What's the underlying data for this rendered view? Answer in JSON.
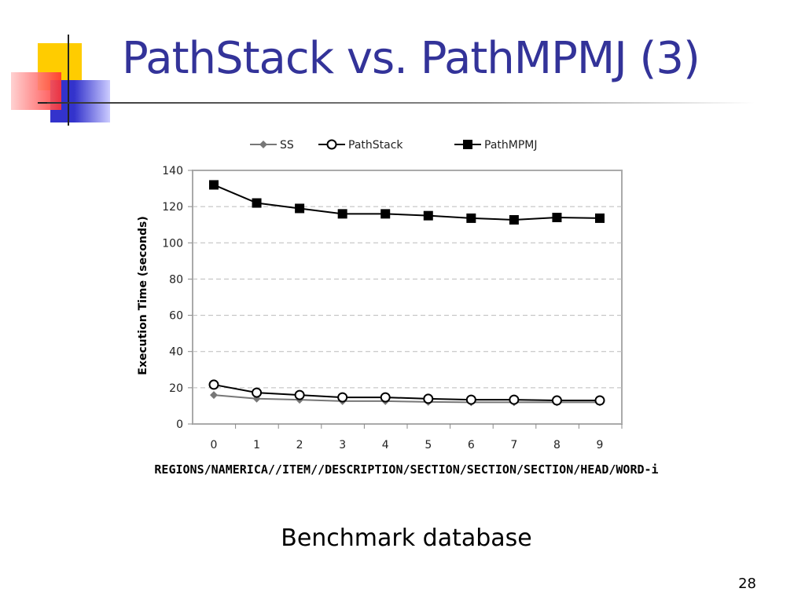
{
  "slide": {
    "title": "PathStack vs. PathMPMJ (3)",
    "caption": "Benchmark database",
    "page_number": "28"
  },
  "colors": {
    "title": "#333399",
    "deco_yellow": "#ffcc00",
    "deco_red": "#ff3333",
    "deco_blue": "#3333cc"
  },
  "chart_data": {
    "type": "line",
    "title": "",
    "xlabel": "REGIONS/NAMERICA//ITEM//DESCRIPTION/SECTION/SECTION/SECTION/HEAD/WORD-i",
    "ylabel": "Execution Time (seconds)",
    "x": [
      0,
      1,
      2,
      3,
      4,
      5,
      6,
      7,
      8,
      9
    ],
    "x_tick_labels": [
      "0",
      "1",
      "2",
      "3",
      "4",
      "5",
      "6",
      "7",
      "8",
      "9"
    ],
    "ylim": [
      0,
      140
    ],
    "y_ticks": [
      0,
      20,
      40,
      60,
      80,
      100,
      120,
      140
    ],
    "y_tick_labels": [
      "0",
      "20",
      "40",
      "60",
      "80",
      "100",
      "120",
      "140"
    ],
    "grid": "horizontal dashed",
    "legend_position": "top",
    "series": [
      {
        "name": "SS",
        "marker": "diamond",
        "color": "#777777",
        "values": [
          16,
          14,
          13.4,
          12.6,
          12.6,
          12.2,
          12,
          12,
          12,
          12
        ]
      },
      {
        "name": "PathStack",
        "marker": "open-circle",
        "color": "#000000",
        "values": [
          21.7,
          17.3,
          16,
          14.7,
          14.7,
          13.9,
          13.4,
          13.4,
          13,
          13
        ]
      },
      {
        "name": "PathMPMJ",
        "marker": "filled-square",
        "color": "#000000",
        "values": [
          132,
          122,
          119,
          116,
          116,
          115,
          113.6,
          112.7,
          114,
          113.6
        ]
      }
    ]
  }
}
